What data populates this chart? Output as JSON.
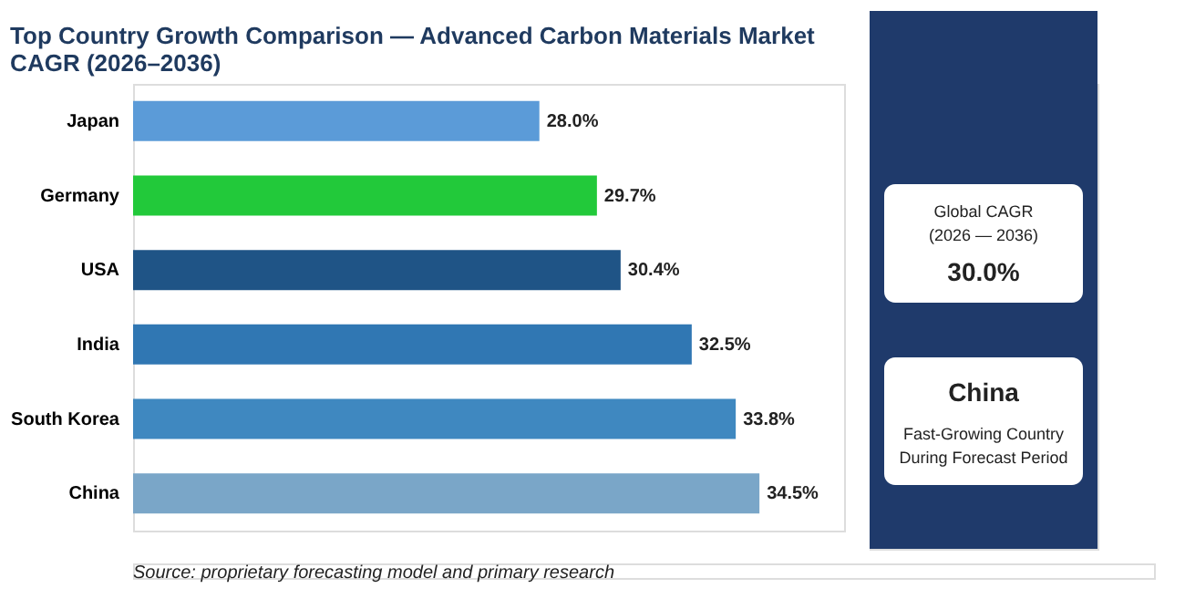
{
  "chart_data": [
    {
      "type": "bar",
      "orientation": "horizontal",
      "title": "Top Country Growth Comparison — Advanced Carbon Materials Market CAGR (2026–2036)",
      "categories": [
        "Japan",
        "Germany",
        "USA",
        "India",
        "South Korea",
        "China"
      ],
      "values": [
        28.0,
        29.7,
        30.4,
        32.5,
        33.8,
        34.5
      ],
      "colors": [
        "#5b9bd8",
        "#22c93a",
        "#1f5486",
        "#3077b3",
        "#3f88c0",
        "#7aa6c8"
      ],
      "value_labels": [
        "28.0%",
        "29.7%",
        "30.4%",
        "32.5%",
        "33.8%",
        "34.5%"
      ],
      "xlim": [
        16,
        37
      ],
      "tick_labels": "y",
      "annotations": [
        "Source: proprietary forecasting model and primary research"
      ]
    },
    {
      "type": "other",
      "annotations": [
        "Global CAGR",
        "(2026 — 2036)",
        "30.0%",
        "China",
        "Fast-Growing Country",
        "During Forecast Period"
      ]
    }
  ]
}
